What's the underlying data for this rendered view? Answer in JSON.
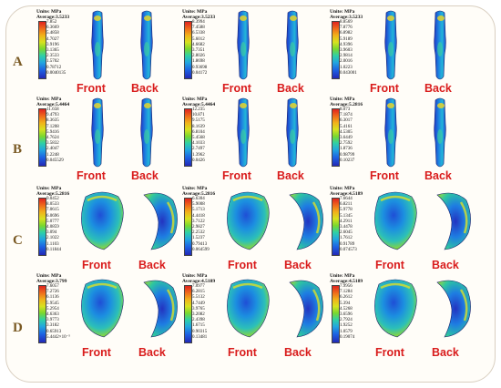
{
  "rows": [
    {
      "label": "A",
      "panels": [
        {
          "units": "Unite: MPa",
          "average": "Average:3.5233",
          "ticks": [
            "7.852",
            "6.3669",
            "5.4858",
            "4.7027",
            "3.9196",
            "3.1365",
            "2.3533",
            "1.5702",
            "0.78712",
            "0.0040135"
          ],
          "front": "Front",
          "back": "Back"
        },
        {
          "units": "Unite: MPa",
          "average": "Average:3.5233",
          "ticks": [
            "8.3994",
            "7.4588",
            "6.5338",
            "5.6012",
            "4.6682",
            "3.7351",
            "2.8026",
            "1.8698",
            "0.93698",
            "0.04172"
          ],
          "front": "Front",
          "back": "Back"
        },
        {
          "units": "Unite: MPa",
          "average": "Average:3.5233",
          "ticks": [
            "8.8569",
            "7.8776",
            "6.8982",
            "5.9189",
            "4.9396",
            "3.9603",
            "2.9814",
            "2.0016",
            "1.0223",
            "0.043001"
          ],
          "front": "Front",
          "back": "Back"
        }
      ]
    },
    {
      "label": "B",
      "panels": [
        {
          "units": "Unite: MPa",
          "average": "Average:5.4464",
          "ticks": [
            "11.658",
            "9.4793",
            "8.3635",
            "7.1208",
            "5.9416",
            "4.7624",
            "3.5832",
            "2.4047",
            "1.2248",
            "0.045529"
          ],
          "front": "Front",
          "back": "Back"
        },
        {
          "units": "Unite: MPa",
          "average": "Average:5.4464",
          "ticks": [
            "12.235",
            "10.871",
            "9.5175",
            "8.1639",
            "6.8104",
            "5.4568",
            "4.1033",
            "2.7497",
            "1.3962",
            "0.0426"
          ],
          "front": "Front",
          "back": "Back"
        },
        {
          "units": "Unite: MPa",
          "average": "Average:5.2816",
          "ticks": [
            "8.073",
            "7.1874",
            "6.3017",
            "5.4161",
            "4.5305",
            "3.6449",
            "2.7592",
            "1.8736",
            "0.98799",
            "0.10237"
          ],
          "front": "Front",
          "back": "Back"
        }
      ]
    },
    {
      "label": "C",
      "panels": [
        {
          "units": "Unite: MPa",
          "average": "Average:5.2816",
          "ticks": [
            "9.0452",
            "8.0533",
            "7.0615",
            "6.0696",
            "5.0777",
            "4.0859",
            "3.094",
            "2.1022",
            "1.1103",
            "0.11844"
          ],
          "front": "Front",
          "back": "Back"
        },
        {
          "units": "Unite: MPa",
          "average": "Average:5.2816",
          "ticks": [
            "6.6304",
            "5.9008",
            "5.1713",
            "4.4418",
            "3.7122",
            "2.9827",
            "2.2532",
            "1.5237",
            "0.79413",
            "0.064599"
          ],
          "front": "Front",
          "back": "Back"
        },
        {
          "units": "Unite: MPa",
          "average": "Average:4.5189",
          "ticks": [
            "7.6644",
            "6.8211",
            "5.9778",
            "5.1345",
            "4.2911",
            "3.4478",
            "2.6045",
            "1.7612",
            "0.91789",
            "0.074573"
          ],
          "front": "Front",
          "back": "Back"
        }
      ]
    },
    {
      "label": "D",
      "panels": [
        {
          "units": "Unite: MPa",
          "average": "Average:3.799",
          "ticks": [
            "7.6057",
            "7.2726",
            "6.1136",
            "5.9545",
            "5.2954",
            "4.6363",
            "3.9773",
            "3.3182",
            "0.65913",
            "5.4442×10⁻⁵"
          ],
          "front": "Front",
          "back": "Back"
        },
        {
          "units": "Unite: MPa",
          "average": "Average:4.5189",
          "ticks": [
            "7.0977",
            "6.2815",
            "5.5132",
            "4.7449",
            "3.9765",
            "3.2082",
            "2.4398",
            "1.6715",
            "0.90315",
            "0.13481"
          ],
          "front": "Front",
          "back": "Back"
        },
        {
          "units": "Unite: MPa",
          "average": "Average:4.5189",
          "ticks": [
            "7.9956",
            "7.1284",
            "6.2612",
            "5.394",
            "4.5268",
            "3.6596",
            "2.7924",
            "1.9252",
            "1.0579",
            "0.19074"
          ],
          "front": "Front",
          "back": "Back"
        }
      ]
    }
  ]
}
